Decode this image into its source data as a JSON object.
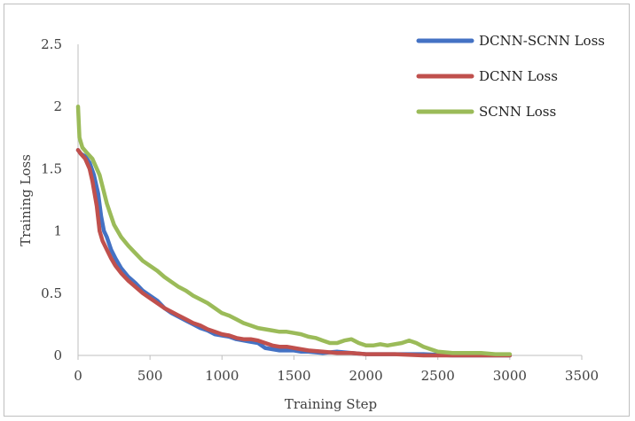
{
  "chart_data": {
    "type": "line",
    "xlabel": "Training Step",
    "ylabel": "Training Loss",
    "xlim": [
      0,
      3500
    ],
    "ylim": [
      0,
      2.5
    ],
    "x_ticks": [
      "0",
      "500",
      "1000",
      "1500",
      "2000",
      "2500",
      "3000",
      "3500"
    ],
    "y_ticks": [
      "0",
      "0.5",
      "1",
      "1.5",
      "2",
      "2.5"
    ],
    "grid": false,
    "legend_position": "top-right",
    "series": [
      {
        "name": "DCNN-SCNN Loss",
        "color": "#4472c4",
        "points": [
          [
            0,
            1.65
          ],
          [
            20,
            1.62
          ],
          [
            50,
            1.6
          ],
          [
            80,
            1.55
          ],
          [
            110,
            1.45
          ],
          [
            140,
            1.3
          ],
          [
            160,
            1.12
          ],
          [
            180,
            1.0
          ],
          [
            200,
            0.95
          ],
          [
            230,
            0.85
          ],
          [
            260,
            0.78
          ],
          [
            300,
            0.7
          ],
          [
            350,
            0.63
          ],
          [
            400,
            0.58
          ],
          [
            450,
            0.52
          ],
          [
            500,
            0.48
          ],
          [
            550,
            0.44
          ],
          [
            600,
            0.38
          ],
          [
            650,
            0.34
          ],
          [
            700,
            0.31
          ],
          [
            750,
            0.28
          ],
          [
            800,
            0.25
          ],
          [
            850,
            0.22
          ],
          [
            900,
            0.2
          ],
          [
            950,
            0.17
          ],
          [
            1000,
            0.16
          ],
          [
            1050,
            0.15
          ],
          [
            1100,
            0.13
          ],
          [
            1150,
            0.12
          ],
          [
            1200,
            0.11
          ],
          [
            1250,
            0.1
          ],
          [
            1300,
            0.06
          ],
          [
            1350,
            0.05
          ],
          [
            1400,
            0.04
          ],
          [
            1450,
            0.04
          ],
          [
            1500,
            0.04
          ],
          [
            1550,
            0.03
          ],
          [
            1600,
            0.03
          ],
          [
            1700,
            0.02
          ],
          [
            1800,
            0.03
          ],
          [
            1900,
            0.02
          ],
          [
            2000,
            0.01
          ],
          [
            2200,
            0.01
          ],
          [
            2400,
            0.01
          ],
          [
            2600,
            0.0
          ],
          [
            2800,
            0.0
          ],
          [
            3000,
            0.0
          ]
        ]
      },
      {
        "name": "DCNN Loss",
        "color": "#c0504d",
        "points": [
          [
            0,
            1.65
          ],
          [
            20,
            1.62
          ],
          [
            50,
            1.58
          ],
          [
            80,
            1.5
          ],
          [
            100,
            1.4
          ],
          [
            130,
            1.2
          ],
          [
            150,
            1.0
          ],
          [
            170,
            0.92
          ],
          [
            200,
            0.85
          ],
          [
            230,
            0.78
          ],
          [
            260,
            0.72
          ],
          [
            300,
            0.66
          ],
          [
            350,
            0.6
          ],
          [
            400,
            0.55
          ],
          [
            450,
            0.5
          ],
          [
            500,
            0.46
          ],
          [
            550,
            0.42
          ],
          [
            600,
            0.38
          ],
          [
            650,
            0.35
          ],
          [
            700,
            0.32
          ],
          [
            750,
            0.29
          ],
          [
            800,
            0.26
          ],
          [
            850,
            0.24
          ],
          [
            900,
            0.21
          ],
          [
            950,
            0.19
          ],
          [
            1000,
            0.17
          ],
          [
            1050,
            0.16
          ],
          [
            1100,
            0.14
          ],
          [
            1150,
            0.13
          ],
          [
            1200,
            0.13
          ],
          [
            1250,
            0.12
          ],
          [
            1300,
            0.1
          ],
          [
            1350,
            0.08
          ],
          [
            1400,
            0.07
          ],
          [
            1450,
            0.07
          ],
          [
            1500,
            0.06
          ],
          [
            1550,
            0.05
          ],
          [
            1600,
            0.04
          ],
          [
            1700,
            0.03
          ],
          [
            1800,
            0.02
          ],
          [
            1900,
            0.02
          ],
          [
            2000,
            0.01
          ],
          [
            2200,
            0.01
          ],
          [
            2400,
            0.0
          ],
          [
            2600,
            0.0
          ],
          [
            2800,
            0.0
          ],
          [
            3000,
            0.0
          ]
        ]
      },
      {
        "name": "SCNN Loss",
        "color": "#9bbb59",
        "points": [
          [
            0,
            2.0
          ],
          [
            10,
            1.75
          ],
          [
            30,
            1.67
          ],
          [
            60,
            1.63
          ],
          [
            100,
            1.58
          ],
          [
            150,
            1.45
          ],
          [
            200,
            1.22
          ],
          [
            250,
            1.05
          ],
          [
            300,
            0.95
          ],
          [
            350,
            0.88
          ],
          [
            400,
            0.82
          ],
          [
            450,
            0.76
          ],
          [
            500,
            0.72
          ],
          [
            550,
            0.68
          ],
          [
            600,
            0.63
          ],
          [
            650,
            0.59
          ],
          [
            700,
            0.55
          ],
          [
            750,
            0.52
          ],
          [
            800,
            0.48
          ],
          [
            850,
            0.45
          ],
          [
            900,
            0.42
          ],
          [
            950,
            0.38
          ],
          [
            1000,
            0.34
          ],
          [
            1050,
            0.32
          ],
          [
            1100,
            0.29
          ],
          [
            1150,
            0.26
          ],
          [
            1200,
            0.24
          ],
          [
            1250,
            0.22
          ],
          [
            1300,
            0.21
          ],
          [
            1350,
            0.2
          ],
          [
            1400,
            0.19
          ],
          [
            1450,
            0.19
          ],
          [
            1500,
            0.18
          ],
          [
            1550,
            0.17
          ],
          [
            1600,
            0.15
          ],
          [
            1650,
            0.14
          ],
          [
            1700,
            0.12
          ],
          [
            1750,
            0.1
          ],
          [
            1800,
            0.1
          ],
          [
            1850,
            0.12
          ],
          [
            1900,
            0.13
          ],
          [
            1950,
            0.1
          ],
          [
            2000,
            0.08
          ],
          [
            2050,
            0.08
          ],
          [
            2100,
            0.09
          ],
          [
            2150,
            0.08
          ],
          [
            2200,
            0.09
          ],
          [
            2250,
            0.1
          ],
          [
            2300,
            0.12
          ],
          [
            2350,
            0.1
          ],
          [
            2400,
            0.07
          ],
          [
            2450,
            0.05
          ],
          [
            2500,
            0.03
          ],
          [
            2600,
            0.02
          ],
          [
            2700,
            0.02
          ],
          [
            2800,
            0.02
          ],
          [
            2900,
            0.01
          ],
          [
            3000,
            0.01
          ]
        ]
      }
    ]
  }
}
